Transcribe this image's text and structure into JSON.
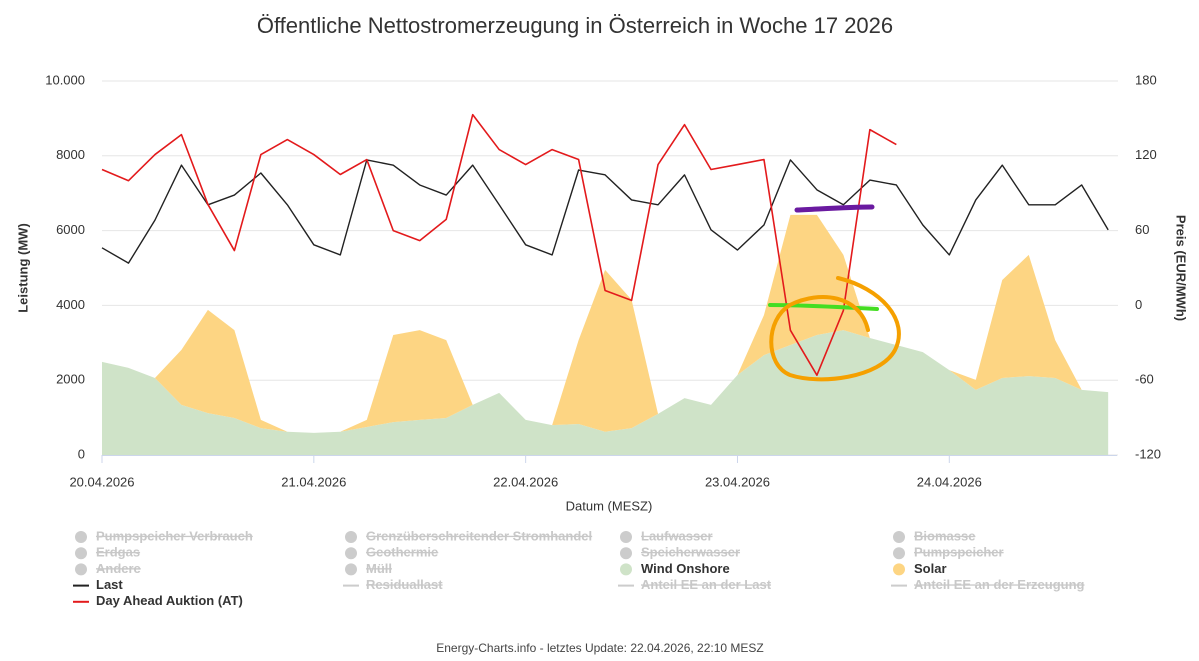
{
  "chart_data": {
    "type": "line",
    "title": "Öffentliche Nettostromerzeugung in Österreich in Woche 17 2026",
    "x_label": "Datum (MESZ)",
    "y_label": "Leistung (MW)",
    "y2_label": "Preis (EUR/MWh)",
    "footer": "Energy-Charts.info - letztes Update: 22.04.2026, 22:10 MESZ",
    "x": [
      0,
      3,
      6,
      9,
      12,
      15,
      18,
      21,
      24,
      27,
      30,
      33,
      36,
      39,
      42,
      45,
      48,
      51,
      54,
      57,
      60,
      63,
      66,
      69,
      72,
      75,
      78,
      81,
      84,
      87,
      90,
      93,
      96,
      99,
      102,
      105,
      108,
      111,
      114
    ],
    "xlim": [
      0,
      115
    ],
    "xticks": [
      {
        "value": 0,
        "label": "20.04.2026"
      },
      {
        "value": 24,
        "label": "21.04.2026"
      },
      {
        "value": 48,
        "label": "22.04.2026"
      },
      {
        "value": 72,
        "label": "23.04.2026"
      },
      {
        "value": 96,
        "label": "24.04.2026"
      }
    ],
    "ylim": [
      0,
      10000
    ],
    "yticks": [
      0,
      2000,
      4000,
      6000,
      8000,
      {
        "value": 10000,
        "label": "10.000"
      }
    ],
    "y2lim": [
      -120,
      180
    ],
    "y2ticks": [
      -120,
      -60,
      0,
      60,
      120,
      180
    ],
    "grid": true,
    "stacking": "areas",
    "series": [
      {
        "name": "Pumpspeicher Verbrauch",
        "visible": false,
        "marker": "circle"
      },
      {
        "name": "Grenzüberschreitender Stromhandel",
        "visible": false,
        "marker": "circle"
      },
      {
        "name": "Laufwasser",
        "visible": false,
        "marker": "circle"
      },
      {
        "name": "Biomasse",
        "visible": false,
        "marker": "circle"
      },
      {
        "name": "Erdgas",
        "visible": false,
        "marker": "circle"
      },
      {
        "name": "Geothermie",
        "visible": false,
        "marker": "circle"
      },
      {
        "name": "Speicherwasser",
        "visible": false,
        "marker": "circle"
      },
      {
        "name": "Pumpspeicher",
        "visible": false,
        "marker": "circle"
      },
      {
        "name": "Andere",
        "visible": false,
        "marker": "circle"
      },
      {
        "name": "Müll",
        "visible": false,
        "marker": "circle"
      },
      {
        "name": "Wind Onshore",
        "visible": true,
        "marker": "circle",
        "kind": "area",
        "color": "#cfe3c8",
        "values": [
          2490,
          2330,
          2060,
          1340,
          1120,
          990,
          720,
          620,
          590,
          620,
          750,
          880,
          940,
          990,
          1340,
          1660,
          940,
          800,
          830,
          620,
          720,
          1100,
          1520,
          1340,
          2140,
          2670,
          2940,
          3210,
          3340,
          3130,
          2940,
          2750,
          2270,
          1740,
          2060,
          2110,
          2060,
          1740,
          1680
        ]
      },
      {
        "name": "Solar",
        "visible": true,
        "marker": "circle",
        "kind": "area",
        "color": "#fdd583",
        "values": [
          0,
          0,
          0,
          1470,
          2760,
          2350,
          220,
          0,
          0,
          0,
          190,
          2330,
          2400,
          2080,
          0,
          0,
          0,
          0,
          2240,
          4330,
          3430,
          0,
          0,
          0,
          0,
          1070,
          3480,
          3210,
          2010,
          0,
          0,
          0,
          0,
          270,
          2620,
          3240,
          1010,
          0,
          0
        ]
      },
      {
        "name": "Last",
        "visible": true,
        "marker": "line",
        "kind": "line",
        "color": "#222222",
        "values": [
          5540,
          5130,
          6280,
          7750,
          6690,
          6950,
          7540,
          6690,
          5620,
          5350,
          7890,
          7750,
          7220,
          6950,
          7750,
          6690,
          5620,
          5350,
          7620,
          7490,
          6820,
          6690,
          7490,
          6020,
          5480,
          6150,
          7890,
          7090,
          6690,
          7350,
          7220,
          6150,
          5350,
          6820,
          7750,
          6690,
          6690,
          7220,
          6020
        ]
      },
      {
        "name": "Residuallast",
        "visible": false,
        "marker": "line"
      },
      {
        "name": "Anteil EE an der Last",
        "visible": false,
        "marker": "line"
      },
      {
        "name": "Anteil EE an der Erzeugung",
        "visible": false,
        "marker": "line"
      },
      {
        "name": "Day Ahead Auktion (AT)",
        "visible": true,
        "marker": "line",
        "kind": "line",
        "axis": "y2",
        "color": "#e31a1c",
        "values": [
          109,
          100,
          121,
          137,
          81,
          44,
          121,
          133,
          121,
          105,
          117,
          60,
          52,
          69,
          153,
          125,
          113,
          125,
          117,
          12,
          4,
          113,
          145,
          109,
          113,
          117,
          -20,
          -56,
          -4,
          141,
          129,
          null,
          null,
          null,
          null,
          null,
          null,
          null,
          null
        ]
      }
    ]
  }
}
